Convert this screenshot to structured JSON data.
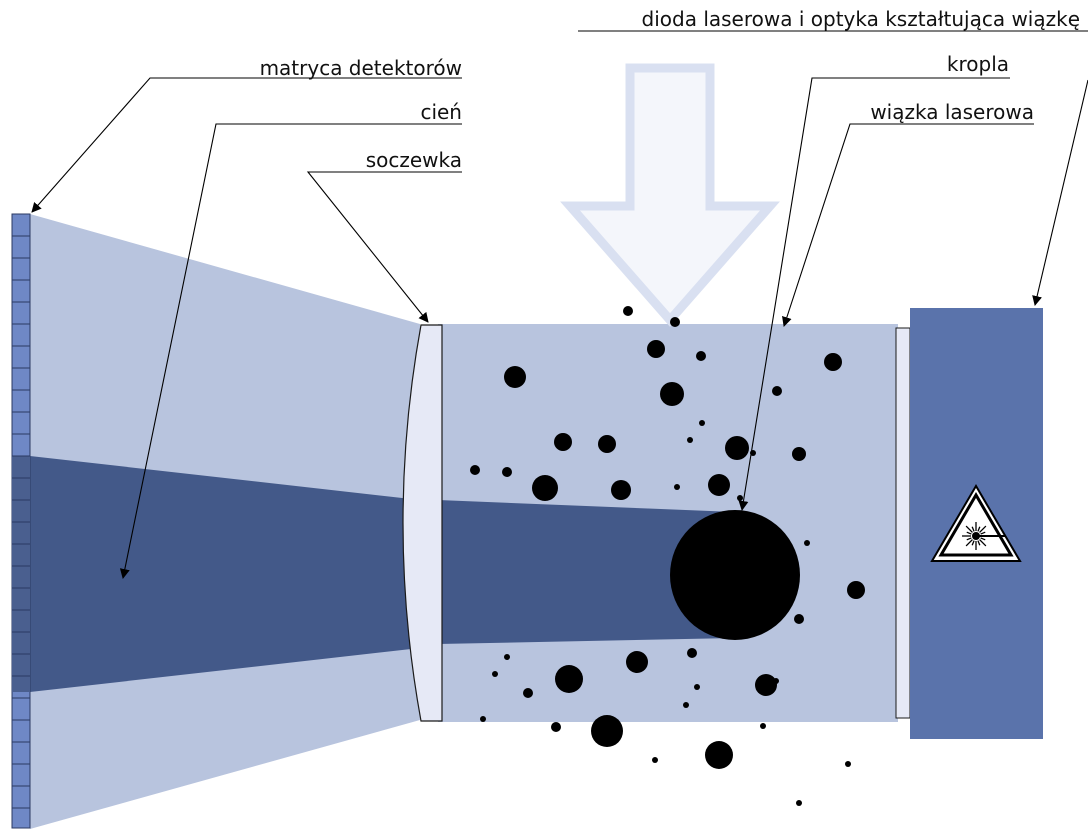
{
  "labels": {
    "detector_matrix": "matryca detektorów",
    "shadow": "cień",
    "lens": "soczewka",
    "laser_diode": "dioda laserowa i optyka kształtująca wiązkę",
    "droplet": "kropla",
    "laser_beam": "wiązka laserowa"
  },
  "icons": {
    "laser_warning": "laser-warning-icon",
    "arrow_down": "arrow-down-icon"
  },
  "colors": {
    "beam": "#b8c4de",
    "shadow": "#435989",
    "detector": "#6f88c6",
    "detector_shadowed": "#4a5f8f",
    "lens": "#e6e9f6",
    "laser_housing": "#5a73ab",
    "droplet": "#000000",
    "arrow_fill": "#f4f6fb",
    "arrow_stroke": "#d9e0f1"
  }
}
